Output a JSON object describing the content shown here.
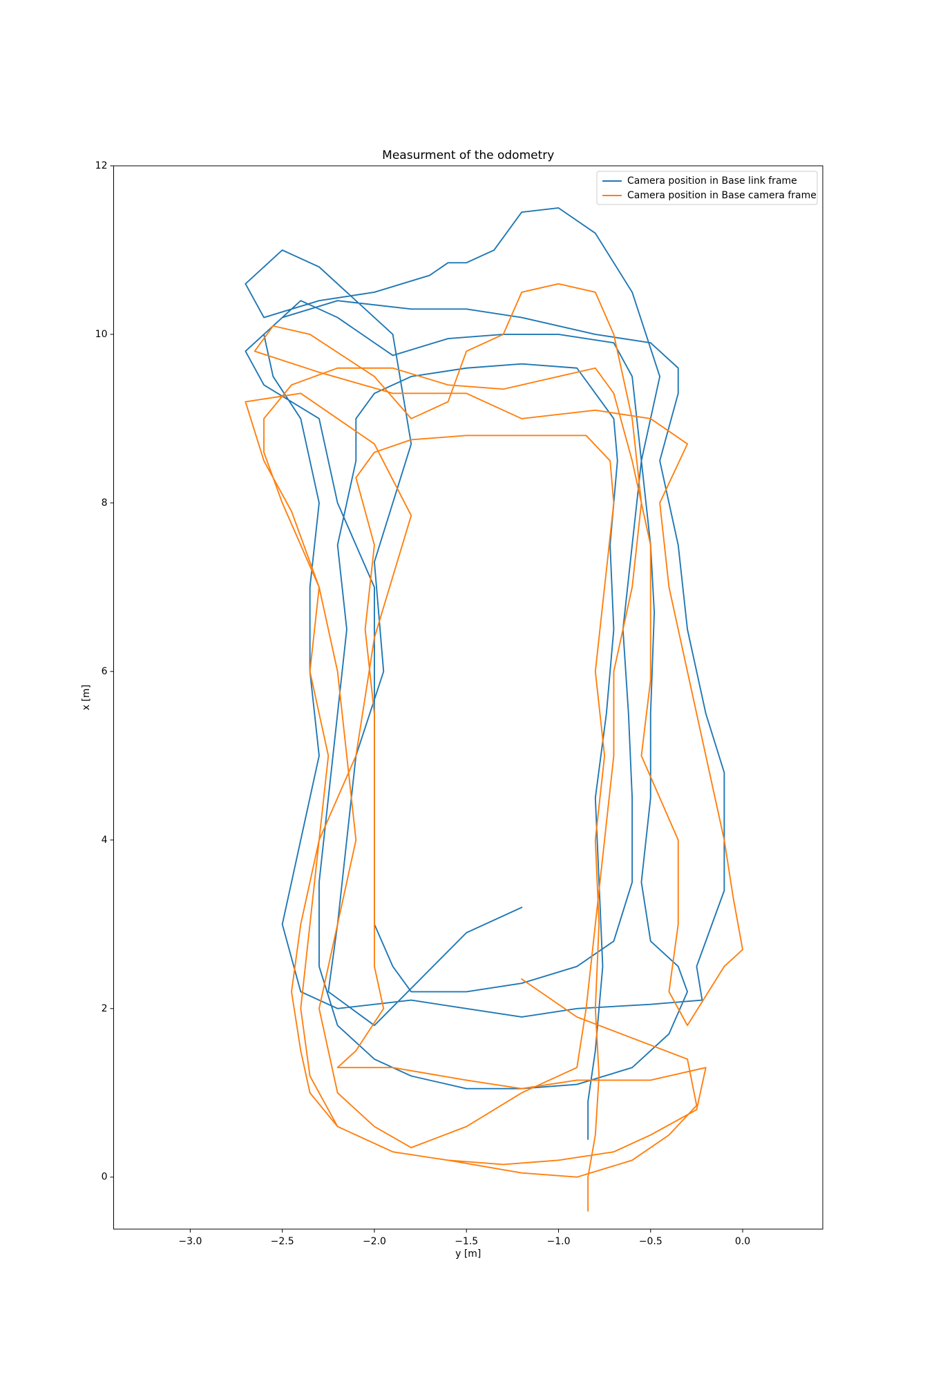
{
  "chart_data": {
    "type": "line",
    "title": "Measurment of the odometry",
    "x_label": "y [m]",
    "y_label": "x [m]",
    "xlim": [
      -3.416,
      0.435
    ],
    "ylim": [
      -0.617,
      12.0
    ],
    "xticks": [
      {
        "value": -3.0,
        "label": "−3.0"
      },
      {
        "value": -2.5,
        "label": "−2.5"
      },
      {
        "value": -2.0,
        "label": "−2.0"
      },
      {
        "value": -1.5,
        "label": "−1.5"
      },
      {
        "value": -1.0,
        "label": "−1.0"
      },
      {
        "value": -0.5,
        "label": "−0.5"
      },
      {
        "value": 0.0,
        "label": "0.0"
      }
    ],
    "yticks": [
      0,
      2,
      4,
      6,
      8,
      10,
      12
    ],
    "grid": false,
    "legend_position": "upper right",
    "series": [
      {
        "name": "Camera position in Base link frame",
        "color": "#1f77b4",
        "x": [
          -0.84,
          -0.84,
          -0.8,
          -0.76,
          -0.78,
          -0.8,
          -0.74,
          -0.7,
          -0.72,
          -0.68,
          -0.7,
          -0.8,
          -0.9,
          -1.2,
          -1.5,
          -1.8,
          -2.0,
          -2.1,
          -2.1,
          -2.2,
          -2.15,
          -2.2,
          -2.25,
          -2.3,
          -2.3,
          -2.2,
          -2.0,
          -1.8,
          -1.5,
          -1.2,
          -0.9,
          -0.6,
          -0.4,
          -0.3,
          -0.35,
          -0.5,
          -0.55,
          -0.5,
          -0.5,
          -0.48,
          -0.5,
          -0.55,
          -0.6,
          -0.7,
          -1.0,
          -1.3,
          -1.6,
          -1.9,
          -2.2,
          -2.4,
          -2.6,
          -2.55,
          -2.4,
          -2.3,
          -2.35,
          -2.35,
          -2.3,
          -2.4,
          -2.5,
          -2.4,
          -2.2,
          -1.8,
          -1.5,
          -1.2,
          -0.9,
          -0.5,
          -0.22,
          -0.25,
          -0.1,
          -0.1,
          -0.1,
          -0.2,
          -0.3,
          -0.35,
          -0.45,
          -0.35,
          -0.35,
          -0.5,
          -0.8,
          -1.2,
          -1.5,
          -1.8,
          -2.2,
          -2.5,
          -2.7,
          -2.6,
          -2.3,
          -2.2,
          -2.0,
          -2.0,
          -2.0,
          -2.0,
          -2.0,
          -1.9,
          -1.8,
          -1.5,
          -1.2,
          -0.9,
          -0.7,
          -0.6,
          -0.6,
          -0.62,
          -0.65,
          -0.6,
          -0.55,
          -0.45,
          -0.6,
          -0.8,
          -1.0,
          -1.2,
          -1.35,
          -1.5,
          -1.6,
          -1.7,
          -2.0,
          -2.3,
          -2.6,
          -2.7,
          -2.5,
          -2.3,
          -1.9,
          -1.8,
          -2.0,
          -1.95,
          -2.1,
          -2.15,
          -2.2,
          -2.25,
          -2.0,
          -1.5,
          -1.2
        ],
        "values": [
          0.45,
          0.9,
          1.5,
          2.5,
          3.5,
          4.5,
          5.5,
          6.5,
          7.5,
          8.5,
          9.0,
          9.3,
          9.6,
          9.65,
          9.6,
          9.5,
          9.3,
          9.0,
          8.5,
          7.5,
          6.5,
          5.5,
          4.5,
          3.5,
          2.5,
          1.8,
          1.4,
          1.2,
          1.05,
          1.05,
          1.1,
          1.3,
          1.7,
          2.2,
          2.5,
          2.8,
          3.5,
          4.5,
          5.5,
          6.7,
          7.5,
          8.5,
          9.5,
          9.9,
          10.0,
          10.0,
          9.95,
          9.75,
          10.2,
          10.4,
          10.0,
          9.5,
          9.0,
          8.0,
          7.0,
          6.0,
          5.0,
          4.0,
          3.0,
          2.2,
          2.0,
          2.1,
          2.0,
          1.9,
          2.0,
          2.05,
          2.1,
          2.5,
          3.4,
          4.0,
          4.8,
          5.5,
          6.5,
          7.5,
          8.5,
          9.3,
          9.6,
          9.9,
          10.0,
          10.2,
          10.3,
          10.3,
          10.4,
          10.2,
          9.8,
          9.4,
          9.0,
          8.0,
          7.0,
          6.0,
          5.0,
          4.0,
          3.0,
          2.5,
          2.2,
          2.2,
          2.3,
          2.5,
          2.8,
          3.5,
          4.5,
          5.5,
          6.5,
          7.5,
          8.5,
          9.5,
          10.5,
          11.2,
          11.5,
          11.45,
          11.0,
          10.85,
          10.85,
          10.7,
          10.5,
          10.4,
          10.2,
          10.6,
          11.0,
          10.8,
          10.0,
          8.7,
          7.3,
          6.0,
          5.0,
          4.0,
          3.0,
          2.2,
          1.8,
          2.9,
          3.2
        ]
      },
      {
        "name": "Camera position in Base camera frame",
        "color": "#ff7f0e",
        "x": [
          -0.84,
          -0.84,
          -0.8,
          -0.78,
          -0.8,
          -0.78,
          -0.8,
          -0.75,
          -0.8,
          -0.75,
          -0.7,
          -0.72,
          -0.85,
          -1.2,
          -1.5,
          -1.8,
          -2.0,
          -2.1,
          -2.0,
          -2.05,
          -2.0,
          -2.0,
          -2.0,
          -2.0,
          -1.95,
          -2.1,
          -2.2,
          -1.9,
          -1.5,
          -1.2,
          -0.9,
          -0.5,
          -0.2,
          -0.25,
          -0.5,
          -0.7,
          -1.0,
          -1.3,
          -1.6,
          -1.9,
          -2.2,
          -2.35,
          -2.4,
          -2.45,
          -2.4,
          -2.3,
          -2.25,
          -2.35,
          -2.3,
          -2.5,
          -2.6,
          -2.6,
          -2.45,
          -2.2,
          -1.9,
          -1.6,
          -1.3,
          -1.0,
          -0.8,
          -0.7,
          -0.6,
          -0.5,
          -0.5,
          -0.5,
          -0.55,
          -0.45,
          -0.35,
          -0.35,
          -0.4,
          -0.3,
          -0.1,
          0.0,
          -0.05,
          -0.1,
          -0.2,
          -0.3,
          -0.4,
          -0.45,
          -0.3,
          -0.5,
          -0.8,
          -1.2,
          -1.5,
          -1.9,
          -2.3,
          -2.65,
          -2.55,
          -2.35,
          -2.0,
          -1.8,
          -1.6,
          -1.5,
          -1.3,
          -1.2,
          -1.0,
          -0.8,
          -0.7,
          -0.6,
          -0.55,
          -0.6,
          -0.7,
          -0.7,
          -0.75,
          -0.8,
          -0.85,
          -0.9,
          -1.2,
          -1.5,
          -1.8,
          -2.0,
          -2.2,
          -2.3,
          -2.2,
          -2.1,
          -2.15,
          -2.2,
          -2.3,
          -2.45,
          -2.6,
          -2.7,
          -2.4,
          -2.0,
          -1.8,
          -2.0,
          -2.1,
          -2.3,
          -2.35,
          -2.4,
          -2.35,
          -2.2,
          -1.9,
          -1.6,
          -1.2,
          -0.9,
          -0.6,
          -0.4,
          -0.25,
          -0.3,
          -0.6,
          -0.9,
          -1.2
        ],
        "values": [
          -0.4,
          0.0,
          0.5,
          1.2,
          2.0,
          3.0,
          4.0,
          5.0,
          6.0,
          7.0,
          8.0,
          8.5,
          8.8,
          8.8,
          8.8,
          8.75,
          8.6,
          8.3,
          7.5,
          6.5,
          5.5,
          4.5,
          3.5,
          2.5,
          2.0,
          1.5,
          1.3,
          1.3,
          1.15,
          1.05,
          1.15,
          1.15,
          1.3,
          0.8,
          0.5,
          0.3,
          0.2,
          0.15,
          0.2,
          0.3,
          0.6,
          1.0,
          1.5,
          2.2,
          3.0,
          4.0,
          5.0,
          6.0,
          7.0,
          8.0,
          8.6,
          9.0,
          9.4,
          9.6,
          9.6,
          9.4,
          9.35,
          9.5,
          9.6,
          9.3,
          8.5,
          7.5,
          6.5,
          5.9,
          5.0,
          4.5,
          4.0,
          3.0,
          2.2,
          1.8,
          2.5,
          2.7,
          3.3,
          4.0,
          5.0,
          6.0,
          7.0,
          8.0,
          8.7,
          9.0,
          9.1,
          9.0,
          9.3,
          9.3,
          9.55,
          9.8,
          10.1,
          10.0,
          9.5,
          9.0,
          9.2,
          9.8,
          10.0,
          10.5,
          10.6,
          10.5,
          10.0,
          9.0,
          8.0,
          7.0,
          6.0,
          5.0,
          4.0,
          3.0,
          2.0,
          1.3,
          1.0,
          0.6,
          0.35,
          0.6,
          1.0,
          2.0,
          3.0,
          4.0,
          5.0,
          6.0,
          7.0,
          7.9,
          8.5,
          9.2,
          9.3,
          8.7,
          7.85,
          6.4,
          5.0,
          4.0,
          3.0,
          2.0,
          1.2,
          0.6,
          0.3,
          0.2,
          0.05,
          0.0,
          0.2,
          0.5,
          0.85,
          1.4,
          1.65,
          1.9,
          2.35
        ]
      }
    ]
  }
}
